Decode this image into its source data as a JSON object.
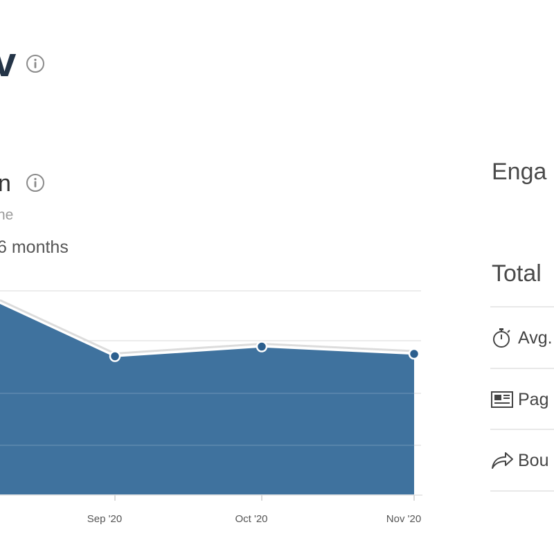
{
  "header": {
    "title_fragment": "v"
  },
  "section": {
    "title_fragment": "n",
    "subtitle_fragment": "ne",
    "range_label": "6 months"
  },
  "engagement_panel": {
    "heading_fragment": "Enga",
    "total_fragment": "Total",
    "metrics": [
      {
        "label": "Avg.",
        "icon": "stopwatch-icon"
      },
      {
        "label": "Pag",
        "icon": "pages-icon"
      },
      {
        "label": "Bou",
        "icon": "bounce-arrow-icon"
      }
    ]
  },
  "colors": {
    "area_fill": "#3f729e",
    "line": "#2c5f8e",
    "grid": "#e6e6e6"
  },
  "chart_data": {
    "type": "area",
    "x": [
      "",
      "Sep '20",
      "Oct '20",
      "Nov '20"
    ],
    "tick_labels": [
      "Sep '20",
      "Oct '20",
      "Nov '20"
    ],
    "values": [
      0.395,
      0.285,
      0.305,
      0.29
    ],
    "ylim": [
      0,
      0.42
    ],
    "grid": true,
    "markers": [
      false,
      true,
      true,
      true
    ]
  }
}
